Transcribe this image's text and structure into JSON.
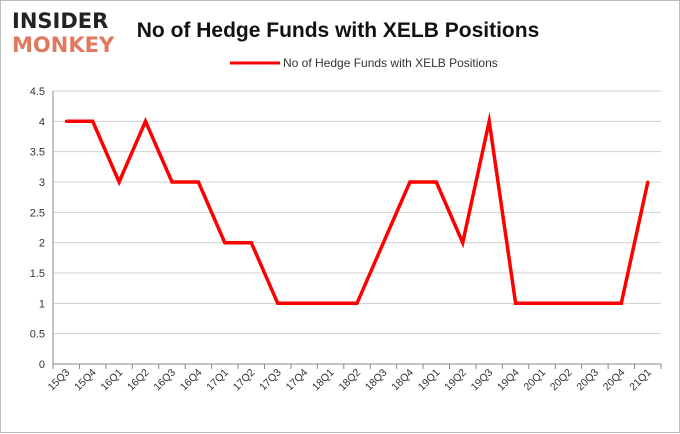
{
  "logo": {
    "line1": "INSIDER",
    "line2": "MONKEY",
    "line1_color": "#222222",
    "line2_color": "#e07a5f"
  },
  "chart_data": {
    "type": "line",
    "title": "No of Hedge Funds with XELB Positions",
    "xlabel": "",
    "ylabel": "",
    "categories": [
      "15Q3",
      "15Q4",
      "16Q1",
      "16Q2",
      "16Q3",
      "16Q4",
      "17Q1",
      "17Q2",
      "17Q3",
      "17Q4",
      "18Q1",
      "18Q2",
      "18Q3",
      "18Q4",
      "19Q1",
      "19Q2",
      "19Q3",
      "19Q4",
      "20Q1",
      "20Q2",
      "20Q3",
      "20Q4",
      "21Q1"
    ],
    "series": [
      {
        "name": "No of Hedge Funds with XELB Positions",
        "color": "#ff0000",
        "values": [
          4,
          4,
          3,
          4,
          3,
          3,
          2,
          2,
          1,
          1,
          1,
          1,
          2,
          3,
          3,
          2,
          4,
          1,
          1,
          1,
          1,
          1,
          3
        ]
      }
    ],
    "ylim": [
      0,
      4.5
    ],
    "yticks": [
      "0",
      "0.5",
      "1",
      "1.5",
      "2",
      "2.5",
      "3",
      "3.5",
      "4",
      "4.5"
    ],
    "grid": true,
    "legend_position": "top-center"
  }
}
